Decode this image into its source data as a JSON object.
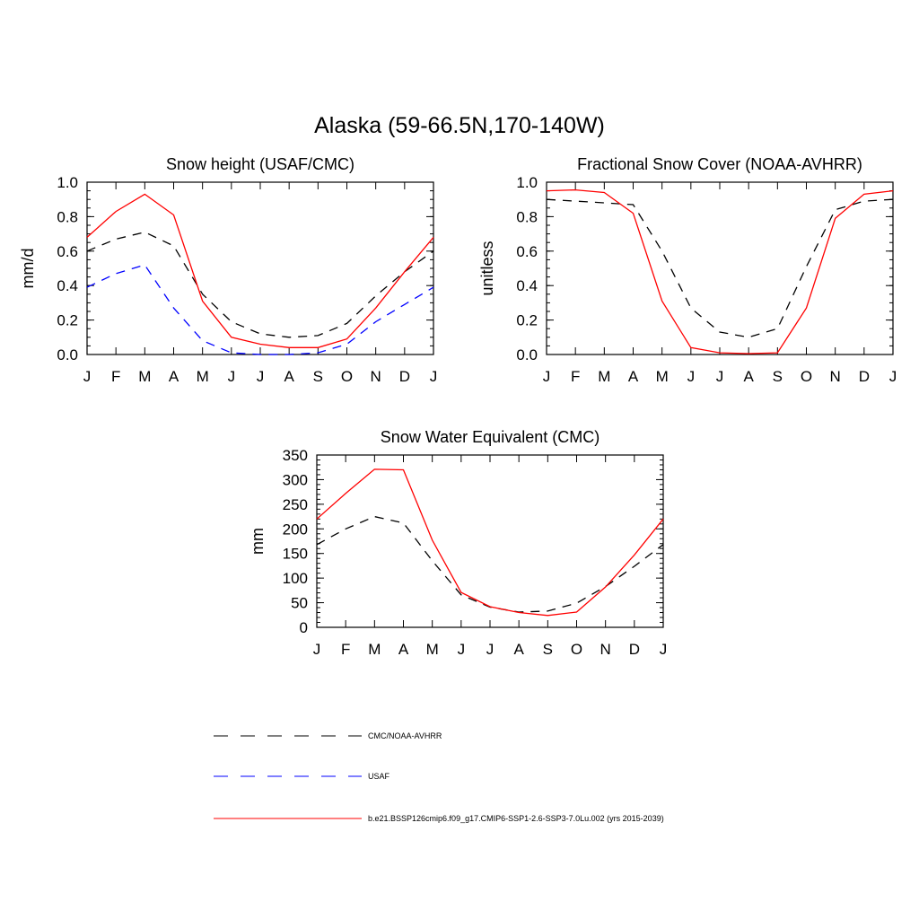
{
  "title": "Alaska (59-66.5N,170-140W)",
  "months": [
    "J",
    "F",
    "M",
    "A",
    "M",
    "J",
    "J",
    "A",
    "S",
    "O",
    "N",
    "D",
    "J"
  ],
  "colors": {
    "obs": "#000000",
    "usaf": "#0000ff",
    "model": "#ff0000"
  },
  "legend": [
    {
      "key": "obs",
      "label": "CMC/NOAA-AVHRR",
      "style": "dashed"
    },
    {
      "key": "usaf",
      "label": "USAF",
      "style": "dashed"
    },
    {
      "key": "model",
      "label": "b.e21.BSSP126cmip6.f09_g17.CMIP6-SSP1-2.6-SSP3-7.0Lu.002 (yrs 2015-2039)",
      "style": "solid"
    }
  ],
  "chart_data": [
    {
      "type": "line",
      "title": "Snow height (USAF/CMC)",
      "xlabel": "",
      "ylabel": "mm/d",
      "ylim": [
        0,
        1.0
      ],
      "yticks": [
        0.0,
        0.2,
        0.4,
        0.6,
        0.8,
        1.0
      ],
      "ytick_labels": [
        "0.0",
        "0.2",
        "0.4",
        "0.6",
        "0.8",
        "1.0"
      ],
      "minor_step": 0.05,
      "categories": [
        "J",
        "F",
        "M",
        "A",
        "M",
        "J",
        "J",
        "A",
        "S",
        "O",
        "N",
        "D",
        "J"
      ],
      "series": [
        {
          "key": "obs",
          "name": "CMC/NOAA-AVHRR",
          "values": [
            0.6,
            0.67,
            0.71,
            0.63,
            0.35,
            0.19,
            0.12,
            0.1,
            0.11,
            0.18,
            0.34,
            0.48,
            0.6
          ]
        },
        {
          "key": "usaf",
          "name": "USAF",
          "values": [
            0.39,
            0.47,
            0.52,
            0.27,
            0.08,
            0.01,
            0.0,
            0.0,
            0.01,
            0.06,
            0.19,
            0.29,
            0.39
          ]
        },
        {
          "key": "model",
          "name": "b.e21.BSSP126cmip6.f09_g17.CMIP6-SSP1-2.6-SSP3-7.0Lu.002 (yrs 2015-2039)",
          "values": [
            0.68,
            0.83,
            0.93,
            0.81,
            0.31,
            0.1,
            0.06,
            0.04,
            0.04,
            0.09,
            0.27,
            0.48,
            0.68
          ]
        }
      ]
    },
    {
      "type": "line",
      "title": "Fractional Snow Cover (NOAA-AVHRR)",
      "xlabel": "",
      "ylabel": "unitless",
      "ylim": [
        0,
        1.0
      ],
      "yticks": [
        0.0,
        0.2,
        0.4,
        0.6,
        0.8,
        1.0
      ],
      "ytick_labels": [
        "0.0",
        "0.2",
        "0.4",
        "0.6",
        "0.8",
        "1.0"
      ],
      "minor_step": 0.05,
      "categories": [
        "J",
        "F",
        "M",
        "A",
        "M",
        "J",
        "J",
        "A",
        "S",
        "O",
        "N",
        "D",
        "J"
      ],
      "series": [
        {
          "key": "obs",
          "name": "CMC/NOAA-AVHRR",
          "values": [
            0.9,
            0.89,
            0.88,
            0.87,
            0.6,
            0.27,
            0.13,
            0.1,
            0.15,
            0.51,
            0.84,
            0.89,
            0.9
          ]
        },
        {
          "key": "model",
          "name": "b.e21.BSSP126cmip6.f09_g17.CMIP6-SSP1-2.6-SSP3-7.0Lu.002 (yrs 2015-2039)",
          "values": [
            0.95,
            0.955,
            0.94,
            0.82,
            0.31,
            0.04,
            0.01,
            0.005,
            0.01,
            0.27,
            0.79,
            0.93,
            0.95
          ]
        }
      ]
    },
    {
      "type": "line",
      "title": "Snow Water Equivalent (CMC)",
      "xlabel": "",
      "ylabel": "mm",
      "ylim": [
        0,
        350
      ],
      "yticks": [
        0,
        50,
        100,
        150,
        200,
        250,
        300,
        350
      ],
      "ytick_labels": [
        "0",
        "50",
        "100",
        "150",
        "200",
        "250",
        "300",
        "350"
      ],
      "minor_step": 10,
      "categories": [
        "J",
        "F",
        "M",
        "A",
        "M",
        "J",
        "J",
        "A",
        "S",
        "O",
        "N",
        "D",
        "J"
      ],
      "series": [
        {
          "key": "obs",
          "name": "CMC/NOAA-AVHRR",
          "values": [
            168,
            200,
            225,
            212,
            135,
            66,
            41,
            31,
            33,
            49,
            83,
            124,
            168
          ]
        },
        {
          "key": "model",
          "name": "b.e21.BSSP126cmip6.f09_g17.CMIP6-SSP1-2.6-SSP3-7.0Lu.002 (yrs 2015-2039)",
          "values": [
            220,
            272,
            321,
            320,
            177,
            71,
            42,
            30,
            24,
            31,
            82,
            147,
            220
          ]
        }
      ]
    }
  ]
}
